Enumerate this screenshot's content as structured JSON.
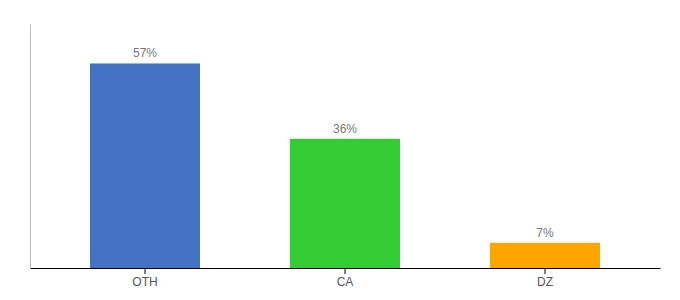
{
  "chart_data": {
    "type": "bar",
    "categories": [
      "OTH",
      "CA",
      "DZ"
    ],
    "values": [
      57,
      36,
      7
    ],
    "value_labels": [
      "57%",
      "36%",
      "7%"
    ],
    "colors": [
      "#4472C4",
      "#33CC33",
      "#FFA500"
    ],
    "ylim": [
      0,
      68
    ],
    "data_labels": true,
    "tick_labels": "x",
    "grid": false
  }
}
